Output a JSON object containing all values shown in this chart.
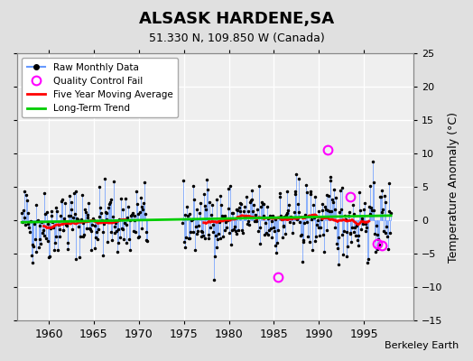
{
  "title": "ALSASK HARDENE,SA",
  "subtitle": "51.330 N, 109.850 W (Canada)",
  "ylabel": "Temperature Anomaly (°C)",
  "credit": "Berkeley Earth",
  "ylim": [
    -15,
    25
  ],
  "yticks": [
    -15,
    -10,
    -5,
    0,
    5,
    10,
    15,
    20,
    25
  ],
  "xlim": [
    1956.5,
    2000.5
  ],
  "xticks": [
    1960,
    1965,
    1970,
    1975,
    1980,
    1985,
    1990,
    1995
  ],
  "bg_color": "#e0e0e0",
  "plot_bg_color": "#efefef",
  "raw_line_color": "#6699ff",
  "raw_dot_color": "#000000",
  "qc_fail_color": "#ff00ff",
  "moving_avg_color": "#ff0000",
  "trend_color": "#00cc00",
  "seed": 42,
  "start_year": 1957,
  "end_year": 1998,
  "n_months": 504,
  "gap_start": 1971.0,
  "gap_end": 1974.8,
  "trend_x": [
    1957,
    1998
  ],
  "trend_y": [
    -0.3,
    0.7
  ],
  "qc_fails": [
    [
      1991.0,
      10.5
    ],
    [
      1985.5,
      -8.5
    ],
    [
      1993.5,
      3.5
    ],
    [
      1996.5,
      -3.5
    ],
    [
      1997.0,
      -3.8
    ]
  ]
}
